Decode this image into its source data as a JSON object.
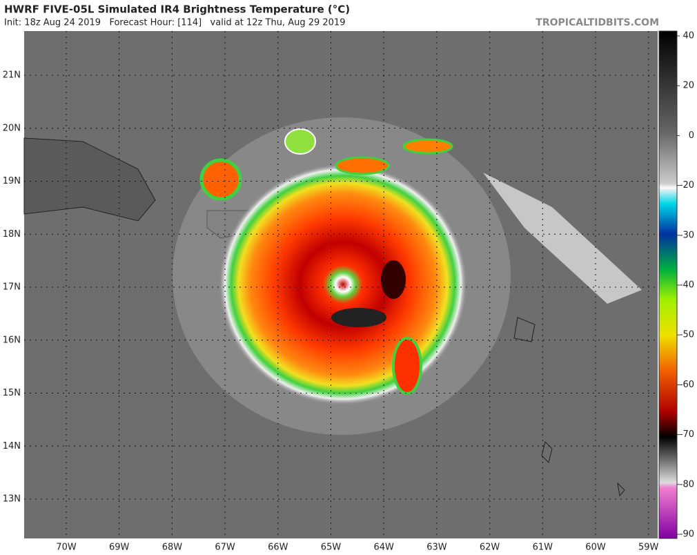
{
  "header": {
    "title": "HWRF FIVE-05L Simulated IR4 Brightness Temperature (°C)",
    "subtitle": "Init: 18z Aug 24 2019   Forecast Hour: [114]   valid at 12z Thu, Aug 29 2019",
    "brand": "TROPICALTIDBITS.COM"
  },
  "map": {
    "lat_labels": [
      "21N",
      "20N",
      "19N",
      "18N",
      "17N",
      "16N",
      "15N",
      "14N",
      "13N"
    ],
    "lon_labels": [
      "70W",
      "69W",
      "68W",
      "67W",
      "66W",
      "65W",
      "64W",
      "63W",
      "62W",
      "61W",
      "60W",
      "59W"
    ]
  },
  "colorbar": {
    "ticks": [
      40,
      20,
      0,
      -20,
      -30,
      -40,
      -50,
      -60,
      -70,
      -80,
      -90
    ]
  }
}
